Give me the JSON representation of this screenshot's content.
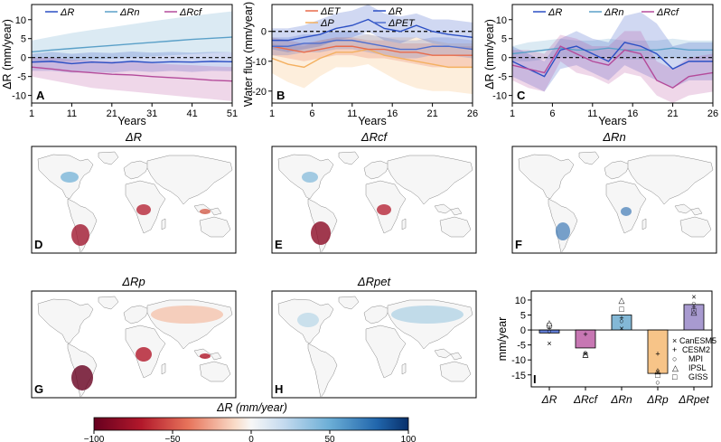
{
  "colors": {
    "dR": "#2b4fc4",
    "dRn": "#5aa0c8",
    "dRcf": "#b44a9a",
    "dET": "#e86b4b",
    "dP": "#f4b060",
    "dPET": "#4f6fcf",
    "bar_dR": "#2b4fc4",
    "bar_dRcf": "#b44a9a",
    "bar_dRn": "#5aa0c8",
    "bar_dRp": "#f4b060",
    "bar_dRpet": "#8b78c0"
  },
  "labels": {
    "dR": "ΔR",
    "dRn": "ΔRn",
    "dRcf": "ΔRcf",
    "dET": "ΔET",
    "dP": "ΔP",
    "dPET": "ΔPET",
    "dRp": "ΔRp",
    "dRpet": "ΔRpet",
    "years": "Years",
    "mm_year": "mm/year",
    "colorbar_label": "ΔR (mm/year)"
  },
  "maps": [
    {
      "letter": "D",
      "title": "ΔR"
    },
    {
      "letter": "E",
      "title": "ΔRcf"
    },
    {
      "letter": "F",
      "title": "ΔRn"
    },
    {
      "letter": "G",
      "title": "ΔRp"
    },
    {
      "letter": "H",
      "title": "ΔRpet"
    }
  ],
  "colorbar": {
    "ticks": [
      "−100",
      "−50",
      "0",
      "50",
      "100"
    ]
  },
  "chart_data": [
    {
      "letter": "A",
      "type": "line",
      "ylabel": "ΔR (mm/year)",
      "xlabel": "Years",
      "xlim": [
        1,
        51
      ],
      "ylim": [
        -12,
        14
      ],
      "xticks": [
        1,
        11,
        21,
        31,
        41,
        51
      ],
      "yticks": [
        -10,
        -5,
        0,
        5,
        10
      ],
      "legend": [
        "ΔR",
        "ΔRn",
        "ΔRcf"
      ],
      "series": [
        {
          "name": "ΔRn",
          "x": [
            1,
            6,
            11,
            16,
            21,
            26,
            31,
            36,
            41,
            46,
            51
          ],
          "values": [
            1.5,
            2.0,
            2.4,
            2.8,
            3.2,
            3.6,
            4.0,
            4.4,
            4.8,
            5.1,
            5.4
          ],
          "lower": [
            -1.5,
            -1.2,
            -1.0,
            -0.6,
            -0.3,
            0.0,
            0.3,
            0.6,
            0.9,
            1.2,
            1.4
          ],
          "upper": [
            4.5,
            5.5,
            6.5,
            7.3,
            8.0,
            8.8,
            9.6,
            10.3,
            11.0,
            11.6,
            12.2
          ]
        },
        {
          "name": "ΔR",
          "x": [
            1,
            6,
            11,
            16,
            21,
            26,
            31,
            36,
            41,
            46,
            51
          ],
          "values": [
            -1.2,
            -1.0,
            -1.6,
            -1.2,
            -1.4,
            -1.0,
            -1.3,
            -1.1,
            -1.2,
            -1.0,
            -1.1
          ],
          "lower": [
            -3.5,
            -3.5,
            -4.0,
            -3.8,
            -4.0,
            -3.5,
            -3.8,
            -3.5,
            -3.8,
            -3.5,
            -3.6
          ],
          "upper": [
            1.0,
            1.5,
            1.0,
            1.4,
            1.2,
            1.6,
            1.3,
            1.5,
            1.3,
            1.5,
            1.4
          ]
        },
        {
          "name": "ΔRcf",
          "x": [
            1,
            6,
            11,
            16,
            21,
            26,
            31,
            36,
            41,
            46,
            51
          ],
          "values": [
            -2.5,
            -3.0,
            -3.6,
            -4.0,
            -4.4,
            -4.6,
            -5.0,
            -5.3,
            -5.6,
            -6.0,
            -6.2
          ],
          "lower": [
            -5.0,
            -6.0,
            -7.0,
            -8.0,
            -8.5,
            -9.0,
            -9.5,
            -10.0,
            -10.5,
            -11.0,
            -11.5
          ],
          "upper": [
            0.0,
            0.0,
            -0.5,
            -0.8,
            -1.0,
            -1.2,
            -1.5,
            -1.8,
            -2.0,
            -2.3,
            -2.5
          ]
        }
      ]
    },
    {
      "letter": "B",
      "type": "line",
      "ylabel": "Water flux (mm/year)",
      "xlabel": "Years",
      "xlim": [
        1,
        26
      ],
      "ylim": [
        -24,
        9
      ],
      "xticks": [
        1,
        6,
        11,
        16,
        21,
        26
      ],
      "yticks": [
        -20,
        -10,
        0
      ],
      "legend": [
        "ΔET",
        "ΔR",
        "ΔP",
        "ΔPET"
      ],
      "series": [
        {
          "name": "ΔP",
          "x": [
            1,
            3,
            5,
            7,
            9,
            11,
            13,
            15,
            17,
            19,
            21,
            23,
            26
          ],
          "values": [
            -9,
            -11,
            -12,
            -9,
            -7,
            -7,
            -6,
            -8,
            -9,
            -10,
            -11,
            -12,
            -12
          ],
          "lower": [
            -14,
            -17,
            -19,
            -15,
            -12,
            -12,
            -11,
            -14,
            -17,
            -19,
            -20,
            -20,
            -21
          ],
          "upper": [
            -4,
            -5,
            -5,
            -3,
            -2,
            -2,
            -1,
            -2,
            -2,
            -2,
            -3,
            -4,
            -4
          ]
        },
        {
          "name": "ΔET",
          "x": [
            1,
            3,
            5,
            7,
            9,
            11,
            13,
            15,
            17,
            19,
            21,
            23,
            26
          ],
          "values": [
            -5,
            -6,
            -7,
            -6,
            -5,
            -5,
            -6,
            -6,
            -7,
            -7,
            -8,
            -8,
            -8
          ],
          "lower": [
            -8,
            -9,
            -10,
            -9,
            -8,
            -8,
            -9,
            -9,
            -10,
            -11,
            -12,
            -12,
            -12
          ],
          "upper": [
            -2,
            -3,
            -4,
            -3,
            -2,
            -2,
            -3,
            -3,
            -4,
            -4,
            -4,
            -5,
            -5
          ]
        },
        {
          "name": "ΔPET",
          "x": [
            1,
            3,
            5,
            7,
            9,
            11,
            13,
            15,
            17,
            19,
            21,
            23,
            26
          ],
          "values": [
            -5,
            -5,
            -4,
            -4,
            -3,
            -3,
            -4,
            -5,
            -6,
            -6,
            -5,
            -5,
            -6
          ],
          "lower": [
            -8,
            -8,
            -7,
            -7,
            -6,
            -6,
            -7,
            -8,
            -9,
            -9,
            -8,
            -8,
            -9
          ],
          "upper": [
            -2,
            -2,
            -1,
            -1,
            0,
            0,
            -1,
            -2,
            -3,
            -3,
            -2,
            -2,
            -3
          ]
        },
        {
          "name": "ΔR",
          "x": [
            1,
            3,
            5,
            7,
            9,
            11,
            13,
            15,
            17,
            19,
            21,
            23,
            26
          ],
          "values": [
            -3,
            -3,
            -2,
            -1,
            1,
            2,
            4,
            1,
            0,
            2,
            0,
            -1,
            -2
          ],
          "lower": [
            -6,
            -7,
            -6,
            -5,
            -3,
            -2,
            0,
            -3,
            -4,
            -2,
            -4,
            -5,
            -6
          ],
          "upper": [
            1,
            1,
            2,
            4,
            6,
            7,
            9,
            6,
            5,
            6,
            4,
            4,
            3
          ]
        }
      ]
    },
    {
      "letter": "C",
      "type": "line",
      "ylabel": "ΔR (mm/year)",
      "xlabel": "Years",
      "xlim": [
        1,
        26
      ],
      "ylim": [
        -12,
        14
      ],
      "xticks": [
        1,
        6,
        11,
        16,
        21,
        26
      ],
      "yticks": [
        -10,
        -5,
        0,
        5,
        10
      ],
      "legend": [
        "ΔR",
        "ΔRn",
        "ΔRcf"
      ],
      "series": [
        {
          "name": "ΔRn",
          "x": [
            1,
            3,
            5,
            7,
            9,
            11,
            13,
            15,
            17,
            19,
            21,
            23,
            26
          ],
          "values": [
            1,
            1.5,
            2,
            2.5,
            2,
            2,
            2.5,
            2,
            2,
            2,
            2.5,
            2,
            2
          ],
          "lower": [
            -1,
            -1,
            -0.5,
            0,
            0,
            -0.5,
            0,
            -0.5,
            -0.5,
            -0.5,
            0,
            -0.5,
            -0.5
          ],
          "upper": [
            3,
            4,
            4.5,
            5,
            4.5,
            4.5,
            5,
            4.5,
            4.5,
            4.5,
            5,
            4.5,
            4.5
          ]
        },
        {
          "name": "ΔR",
          "x": [
            1,
            3,
            5,
            7,
            9,
            11,
            13,
            15,
            17,
            19,
            21,
            23,
            26
          ],
          "values": [
            -1,
            -3,
            -5,
            2,
            3,
            1,
            -1,
            4,
            3,
            1,
            -3,
            -1,
            -1
          ],
          "lower": [
            -5,
            -7,
            -9,
            -3,
            -2,
            -4,
            -6,
            -2,
            -4,
            -6,
            -8,
            -6,
            -6
          ],
          "upper": [
            3,
            1,
            -1,
            5,
            7,
            5,
            4,
            11,
            12,
            9,
            3,
            4,
            4
          ]
        },
        {
          "name": "ΔRcf",
          "x": [
            1,
            3,
            5,
            7,
            9,
            11,
            13,
            15,
            17,
            19,
            21,
            23,
            26
          ],
          "values": [
            -2,
            -3,
            -4,
            3,
            1,
            -1,
            -2,
            2,
            1,
            -6,
            -8,
            -5,
            -4
          ],
          "lower": [
            -6,
            -8,
            -9,
            -1,
            -4,
            -5,
            -7,
            -4,
            -5,
            -10,
            -12,
            -10,
            -9
          ],
          "upper": [
            2,
            2,
            1,
            6,
            5,
            3,
            3,
            7,
            7,
            -1,
            -3,
            0,
            1
          ]
        }
      ]
    },
    {
      "letter": "I",
      "type": "bar",
      "ylabel": "mm/year",
      "ylim": [
        -19,
        13
      ],
      "yticks": [
        -15,
        -10,
        -5,
        0,
        5,
        10
      ],
      "categories": [
        "ΔR",
        "ΔRcf",
        "ΔRn",
        "ΔRp",
        "ΔRpet"
      ],
      "values": [
        -1,
        -6,
        5,
        -14.5,
        8.5
      ],
      "models": [
        "CanESM5",
        "CESM2",
        "MPI",
        "IPSL",
        "GISS"
      ],
      "model_markers": [
        "×",
        "+",
        "○",
        "△",
        "□"
      ],
      "model_values": [
        [
          -4.5,
          0.5,
          -0.5,
          2.5,
          1.5
        ],
        [
          -8.0,
          -1.5,
          -7.5,
          -8.0,
          -8.5
        ],
        [
          0.5,
          4.0,
          3.0,
          10.0,
          7.0
        ],
        [
          -14.0,
          -8.0,
          -17.5,
          -13.5,
          -15.0
        ],
        [
          11.0,
          7.5,
          9.0,
          6.0,
          6.5
        ]
      ]
    }
  ]
}
